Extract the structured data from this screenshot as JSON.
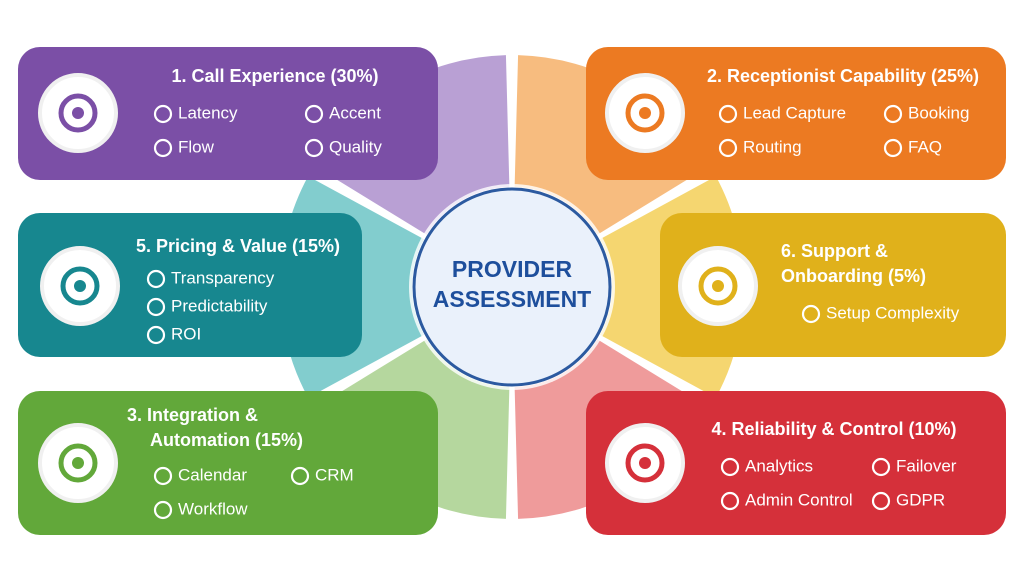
{
  "center": {
    "lines": [
      "PROVIDER",
      "ASSESSMENT"
    ]
  },
  "cards": [
    {
      "title": [
        "1. Call Experience (30%)"
      ],
      "items": [
        "Latency",
        "Accent",
        "Flow",
        "Quality"
      ]
    },
    {
      "title": [
        "2. Receptionist Capability (25%)"
      ],
      "items": [
        "Lead Capture",
        "Booking",
        "Routing",
        "FAQ"
      ]
    },
    {
      "title": [
        "5. Pricing & Value (15%)"
      ],
      "items": [
        "Transparency",
        "Predictability",
        "ROI"
      ]
    },
    {
      "title": [
        "6. Support &",
        "Onboarding (5%)"
      ],
      "items": [
        "Setup Complexity"
      ]
    },
    {
      "title": [
        "3. Integration &",
        "Automation (15%)"
      ],
      "items": [
        "Calendar",
        "CRM",
        "Workflow"
      ]
    },
    {
      "title": [
        "4. Reliability & Control (10%)"
      ],
      "items": [
        "Analytics",
        "Failover",
        "Admin Control",
        "GDPR"
      ]
    }
  ]
}
